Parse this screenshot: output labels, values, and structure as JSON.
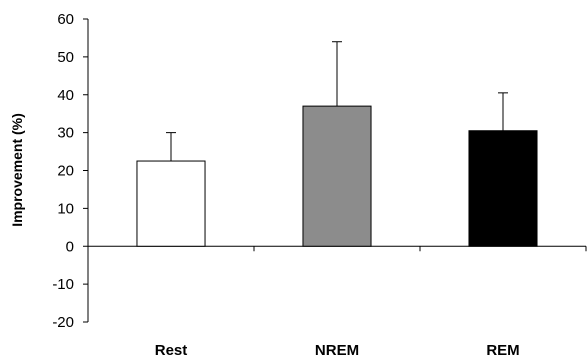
{
  "chart_data": {
    "type": "bar",
    "title": "",
    "xlabel": "",
    "ylabel": "Improvement (%)",
    "categories": [
      "Rest",
      "NREM",
      "REM"
    ],
    "values": [
      22.5,
      37,
      30.5
    ],
    "error_upper": [
      30,
      54,
      40.5
    ],
    "bar_colors": [
      "#ffffff",
      "#8c8c8c",
      "#000000"
    ],
    "ylim": [
      -20,
      60
    ],
    "yticks": [
      "-20",
      "-10",
      "0",
      "10",
      "20",
      "30",
      "40",
      "50",
      "60"
    ],
    "grid": false,
    "legend": "none"
  }
}
